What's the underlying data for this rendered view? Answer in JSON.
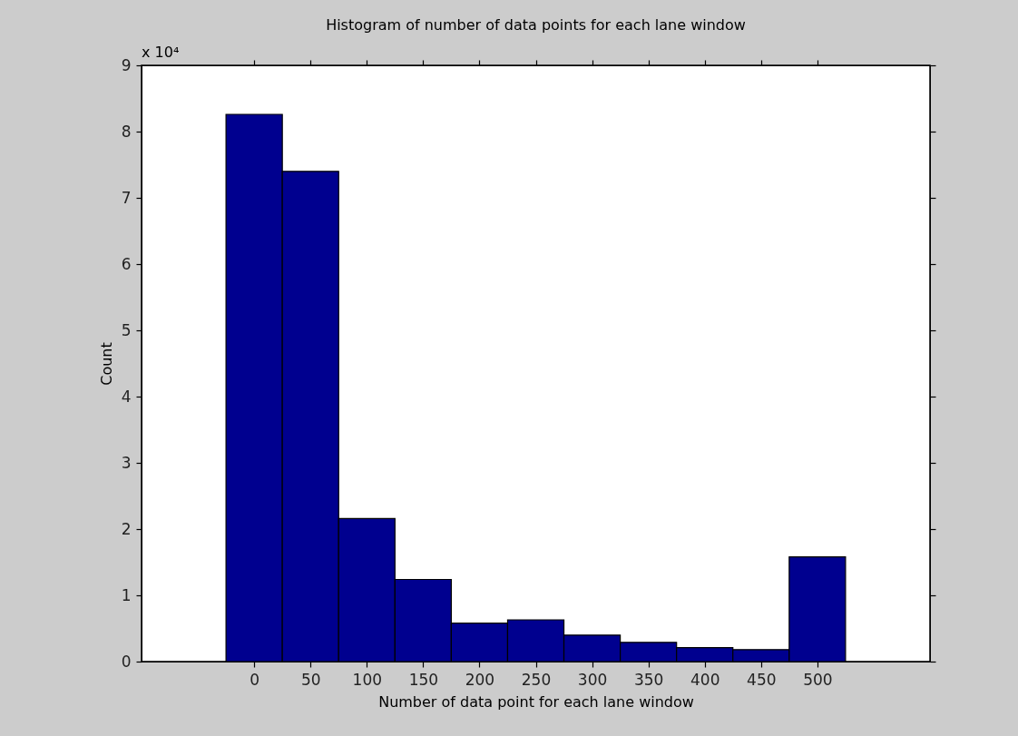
{
  "chart_data": {
    "type": "histogram",
    "title": "Histogram of number of data points for each lane window",
    "xlabel": "Number of data point for each lane window",
    "ylabel": "Count",
    "bins": [
      -25,
      25,
      75,
      125,
      175,
      225,
      275,
      325,
      375,
      425,
      475,
      525
    ],
    "values": [
      8.26,
      7.4,
      2.16,
      1.24,
      0.58,
      0.63,
      0.4,
      0.29,
      0.21,
      0.18,
      1.58
    ],
    "color": "#00008f",
    "xlim": [
      -100,
      600
    ],
    "xticks": [
      0,
      50,
      100,
      150,
      200,
      250,
      300,
      350,
      400,
      450,
      500
    ],
    "ylim": [
      0,
      9
    ],
    "yticks": [
      0,
      1,
      2,
      3,
      4,
      5,
      6,
      7,
      8,
      9
    ],
    "annotations": [
      "x 10⁴"
    ],
    "grid": false
  }
}
